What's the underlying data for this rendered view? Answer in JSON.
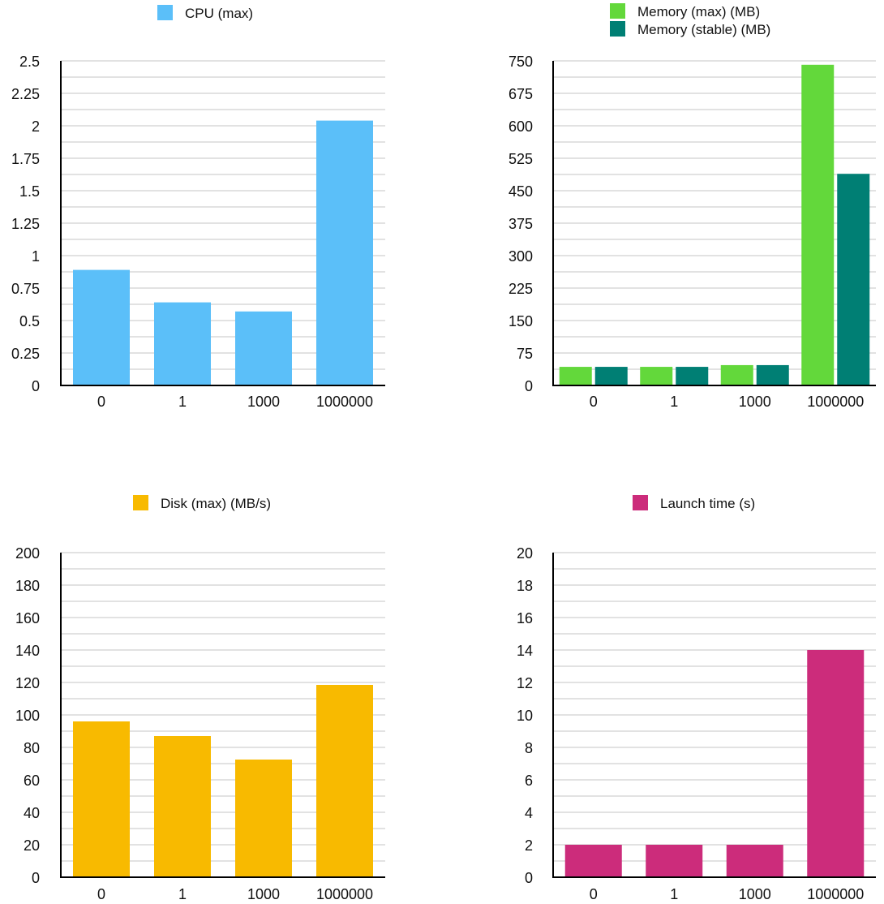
{
  "chart_data": [
    {
      "type": "bar",
      "title": "",
      "categories": [
        "0",
        "1",
        "1000",
        "1000000"
      ],
      "series": [
        {
          "name": "CPU (max)",
          "color": "#5BBFF9",
          "values": [
            0.89,
            0.64,
            0.57,
            2.04
          ]
        }
      ],
      "ylim": [
        0,
        2.5
      ],
      "yticks": [
        "0",
        "0.25",
        "0.5",
        "0.75",
        "1",
        "1.25",
        "1.5",
        "1.75",
        "2",
        "2.25",
        "2.5"
      ],
      "grid": true,
      "legend": "top"
    },
    {
      "type": "bar",
      "title": "",
      "categories": [
        "0",
        "1",
        "1000",
        "1000000"
      ],
      "series": [
        {
          "name": "Memory (max) (MB)",
          "color": "#63D83B",
          "values": [
            43,
            43,
            47,
            741
          ]
        },
        {
          "name": "Memory (stable) (MB)",
          "color": "#007F74",
          "values": [
            43,
            43,
            47,
            489
          ]
        }
      ],
      "ylim": [
        0,
        750
      ],
      "yticks": [
        "0",
        "75",
        "150",
        "225",
        "300",
        "375",
        "450",
        "525",
        "600",
        "675",
        "750"
      ],
      "grid": true,
      "legend": "top"
    },
    {
      "type": "bar",
      "title": "",
      "categories": [
        "0",
        "1",
        "1000",
        "1000000"
      ],
      "series": [
        {
          "name": "Disk (max) (MB/s)",
          "color": "#F8BA00",
          "values": [
            96,
            87,
            72.5,
            118.5
          ]
        }
      ],
      "ylim": [
        0,
        200
      ],
      "yticks": [
        "0",
        "20",
        "40",
        "60",
        "80",
        "100",
        "120",
        "140",
        "160",
        "180",
        "200"
      ],
      "grid": true,
      "legend": "top"
    },
    {
      "type": "bar",
      "title": "",
      "categories": [
        "0",
        "1",
        "1000",
        "1000000"
      ],
      "series": [
        {
          "name": "Launch time (s)",
          "color": "#CC2C7B",
          "values": [
            2,
            2,
            2,
            14
          ]
        }
      ],
      "ylim": [
        0,
        20
      ],
      "yticks": [
        "0",
        "2",
        "4",
        "6",
        "8",
        "10",
        "12",
        "14",
        "16",
        "18",
        "20"
      ],
      "grid": true,
      "legend": "top"
    }
  ]
}
